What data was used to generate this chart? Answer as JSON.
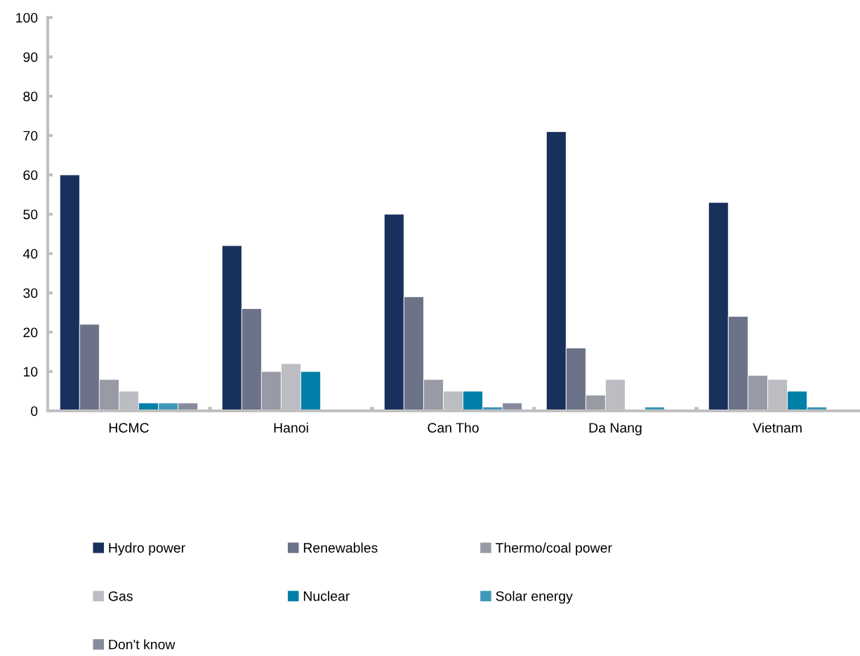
{
  "chart_data": {
    "type": "bar",
    "categories": [
      "HCMC",
      "Hanoi",
      "Can Tho",
      "Da Nang",
      "Vietnam"
    ],
    "series": [
      {
        "name": "Hydro power",
        "color": "#18305c",
        "values": [
          60,
          42,
          50,
          71,
          53
        ]
      },
      {
        "name": "Renewables",
        "color": "#6c7287",
        "values": [
          22,
          26,
          29,
          16,
          24
        ]
      },
      {
        "name": "Thermo/coal power",
        "color": "#989ba5",
        "values": [
          8,
          10,
          8,
          4,
          9
        ]
      },
      {
        "name": "Gas",
        "color": "#bcbdc2",
        "values": [
          5,
          12,
          5,
          8,
          8
        ]
      },
      {
        "name": "Nuclear",
        "color": "#0080a8",
        "values": [
          2,
          10,
          5,
          null,
          5
        ]
      },
      {
        "name": "Solar energy",
        "color": "#4098b8",
        "values": [
          2,
          null,
          1,
          1,
          1
        ]
      },
      {
        "name": "Don't know",
        "color": "#868b9e",
        "values": [
          2,
          null,
          2,
          null,
          null
        ]
      }
    ],
    "ylim": [
      0,
      100
    ],
    "yticks": [
      0,
      10,
      20,
      30,
      40,
      50,
      60,
      70,
      80,
      90,
      100
    ],
    "grid": false,
    "legend": "bottom"
  }
}
